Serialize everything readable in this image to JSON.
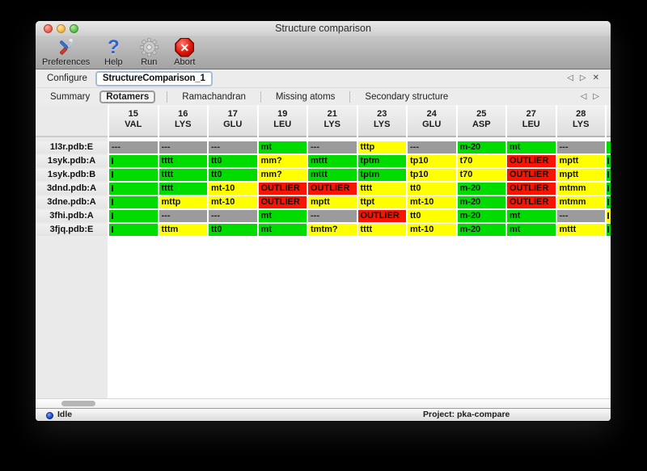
{
  "window": {
    "title": "Structure comparison"
  },
  "toolbar": {
    "buttons": [
      {
        "name": "preferences",
        "label": "Preferences",
        "icon": "tools-icon"
      },
      {
        "name": "help",
        "label": "Help",
        "icon": "question-icon"
      },
      {
        "name": "run",
        "label": "Run",
        "icon": "gear-icon"
      },
      {
        "name": "abort",
        "label": "Abort",
        "icon": "abort-icon"
      }
    ]
  },
  "configure": {
    "label": "Configure",
    "value": "StructureComparison_1"
  },
  "tabs": {
    "active": "Rotamers",
    "items": [
      "Summary",
      "Rotamers",
      "Ramachandran",
      "Missing atoms",
      "Secondary structure"
    ]
  },
  "glyphs": {
    "prev": "◁",
    "next": "▷",
    "close": "✕"
  },
  "table": {
    "columns": [
      {
        "num": "15",
        "res": "VAL"
      },
      {
        "num": "16",
        "res": "LYS"
      },
      {
        "num": "17",
        "res": "GLU"
      },
      {
        "num": "19",
        "res": "LEU"
      },
      {
        "num": "21",
        "res": "LYS"
      },
      {
        "num": "23",
        "res": "LYS"
      },
      {
        "num": "24",
        "res": "GLU"
      },
      {
        "num": "25",
        "res": "ASP"
      },
      {
        "num": "27",
        "res": "LEU"
      },
      {
        "num": "28",
        "res": "LYS"
      }
    ],
    "rows": [
      {
        "label": "1l3r.pdb:E",
        "sliver": "green",
        "sliver_mark": false,
        "cells": [
          {
            "text": "---",
            "color": "gray"
          },
          {
            "text": "---",
            "color": "gray"
          },
          {
            "text": "---",
            "color": "gray"
          },
          {
            "text": "mt",
            "color": "green"
          },
          {
            "text": "---",
            "color": "gray"
          },
          {
            "text": "tttp",
            "color": "yellow"
          },
          {
            "text": "---",
            "color": "gray"
          },
          {
            "text": "m-20",
            "color": "green"
          },
          {
            "text": "mt",
            "color": "green"
          },
          {
            "text": "---",
            "color": "gray"
          }
        ]
      },
      {
        "label": "1syk.pdb:A",
        "sliver": "green",
        "sliver_mark": true,
        "cells": [
          {
            "text": "",
            "color": "green",
            "clipped": true
          },
          {
            "text": "tttt",
            "color": "green"
          },
          {
            "text": "tt0",
            "color": "green"
          },
          {
            "text": "mm?",
            "color": "yellow"
          },
          {
            "text": "mttt",
            "color": "green"
          },
          {
            "text": "tptm",
            "color": "green"
          },
          {
            "text": "tp10",
            "color": "yellow"
          },
          {
            "text": "t70",
            "color": "yellow"
          },
          {
            "text": "OUTLIER",
            "color": "red"
          },
          {
            "text": "mptt",
            "color": "yellow"
          }
        ]
      },
      {
        "label": "1syk.pdb:B",
        "sliver": "green",
        "sliver_mark": true,
        "cells": [
          {
            "text": "",
            "color": "green",
            "clipped": true
          },
          {
            "text": "tttt",
            "color": "green"
          },
          {
            "text": "tt0",
            "color": "green"
          },
          {
            "text": "mm?",
            "color": "yellow"
          },
          {
            "text": "mttt",
            "color": "green"
          },
          {
            "text": "tptm",
            "color": "green"
          },
          {
            "text": "tp10",
            "color": "yellow"
          },
          {
            "text": "t70",
            "color": "yellow"
          },
          {
            "text": "OUTLIER",
            "color": "red"
          },
          {
            "text": "mptt",
            "color": "yellow"
          }
        ]
      },
      {
        "label": "3dnd.pdb:A",
        "sliver": "green",
        "sliver_mark": true,
        "cells": [
          {
            "text": "",
            "color": "green",
            "clipped": true
          },
          {
            "text": "tttt",
            "color": "green"
          },
          {
            "text": "mt-10",
            "color": "yellow"
          },
          {
            "text": "OUTLIER",
            "color": "red"
          },
          {
            "text": "OUTLIER",
            "color": "red"
          },
          {
            "text": "tttt",
            "color": "yellow"
          },
          {
            "text": "tt0",
            "color": "yellow"
          },
          {
            "text": "m-20",
            "color": "green"
          },
          {
            "text": "OUTLIER",
            "color": "red"
          },
          {
            "text": "mtmm",
            "color": "yellow"
          }
        ]
      },
      {
        "label": "3dne.pdb:A",
        "sliver": "green",
        "sliver_mark": true,
        "cells": [
          {
            "text": "",
            "color": "green",
            "clipped": true
          },
          {
            "text": "mttp",
            "color": "yellow"
          },
          {
            "text": "mt-10",
            "color": "yellow"
          },
          {
            "text": "OUTLIER",
            "color": "red"
          },
          {
            "text": "mptt",
            "color": "yellow"
          },
          {
            "text": "ttpt",
            "color": "yellow"
          },
          {
            "text": "mt-10",
            "color": "yellow"
          },
          {
            "text": "m-20",
            "color": "green"
          },
          {
            "text": "OUTLIER",
            "color": "red"
          },
          {
            "text": "mtmm",
            "color": "yellow"
          }
        ]
      },
      {
        "label": "3fhi.pdb:A",
        "sliver": "yellow",
        "sliver_mark": true,
        "cells": [
          {
            "text": "",
            "color": "green",
            "clipped": true
          },
          {
            "text": "---",
            "color": "gray"
          },
          {
            "text": "---",
            "color": "gray"
          },
          {
            "text": "mt",
            "color": "green"
          },
          {
            "text": "---",
            "color": "gray"
          },
          {
            "text": "OUTLIER",
            "color": "red"
          },
          {
            "text": "tt0",
            "color": "yellow"
          },
          {
            "text": "m-20",
            "color": "green"
          },
          {
            "text": "mt",
            "color": "green"
          },
          {
            "text": "---",
            "color": "gray"
          }
        ]
      },
      {
        "label": "3fjq.pdb:E",
        "sliver": "green",
        "sliver_mark": true,
        "cells": [
          {
            "text": "",
            "color": "green",
            "clipped": true
          },
          {
            "text": "tttm",
            "color": "yellow"
          },
          {
            "text": "tt0",
            "color": "green"
          },
          {
            "text": "mt",
            "color": "green"
          },
          {
            "text": "tmtm?",
            "color": "yellow"
          },
          {
            "text": "tttt",
            "color": "yellow"
          },
          {
            "text": "mt-10",
            "color": "yellow"
          },
          {
            "text": "m-20",
            "color": "green"
          },
          {
            "text": "mt",
            "color": "green"
          },
          {
            "text": "mttt",
            "color": "yellow"
          }
        ]
      }
    ]
  },
  "statusbar": {
    "status": "Idle",
    "project": "Project: pka-compare"
  },
  "colors": {
    "green": "#00dc00",
    "yellow": "#ffff00",
    "red": "#f81400",
    "gray": "#9b9b9b",
    "accent_blue": "#2e62d9"
  }
}
